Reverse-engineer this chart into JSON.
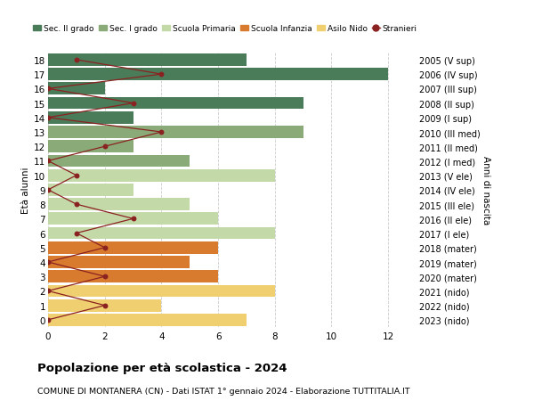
{
  "ages": [
    18,
    17,
    16,
    15,
    14,
    13,
    12,
    11,
    10,
    9,
    8,
    7,
    6,
    5,
    4,
    3,
    2,
    1,
    0
  ],
  "right_labels": [
    "2005 (V sup)",
    "2006 (IV sup)",
    "2007 (III sup)",
    "2008 (II sup)",
    "2009 (I sup)",
    "2010 (III med)",
    "2011 (II med)",
    "2012 (I med)",
    "2013 (V ele)",
    "2014 (IV ele)",
    "2015 (III ele)",
    "2016 (II ele)",
    "2017 (I ele)",
    "2018 (mater)",
    "2019 (mater)",
    "2020 (mater)",
    "2021 (nido)",
    "2022 (nido)",
    "2023 (nido)"
  ],
  "bar_values": [
    7,
    12,
    2,
    9,
    3,
    9,
    3,
    5,
    8,
    3,
    5,
    6,
    8,
    6,
    5,
    6,
    8,
    4,
    7
  ],
  "stranieri": [
    1,
    4,
    0,
    3,
    0,
    4,
    2,
    0,
    1,
    0,
    1,
    3,
    1,
    2,
    0,
    2,
    0,
    2,
    0
  ],
  "bar_colors": [
    "#4a7c59",
    "#4a7c59",
    "#4a7c59",
    "#4a7c59",
    "#4a7c59",
    "#8aab78",
    "#8aab78",
    "#8aab78",
    "#c4d9a8",
    "#c4d9a8",
    "#c4d9a8",
    "#c4d9a8",
    "#c4d9a8",
    "#d97b2e",
    "#d97b2e",
    "#d97b2e",
    "#f0cf70",
    "#f0cf70",
    "#f0cf70"
  ],
  "color_sec2": "#4a7c59",
  "color_sec1": "#8aab78",
  "color_prim": "#c4d9a8",
  "color_inf": "#d97b2e",
  "color_nido": "#f0cf70",
  "color_stranieri": "#8b2222",
  "title_bold": "Popolazione per età scolastica - 2024",
  "subtitle": "COMUNE DI MONTANERA (CN) - Dati ISTAT 1° gennaio 2024 - Elaborazione TUTTITALIA.IT",
  "ylabel_left": "Età alunni",
  "ylabel_right": "Anni di nascita",
  "xlim": [
    0,
    13
  ],
  "ylim": [
    -0.5,
    18.5
  ],
  "background_color": "#ffffff",
  "grid_color": "#cccccc",
  "legend_labels": [
    "Sec. II grado",
    "Sec. I grado",
    "Scuola Primaria",
    "Scuola Infanzia",
    "Asilo Nido",
    "Stranieri"
  ]
}
